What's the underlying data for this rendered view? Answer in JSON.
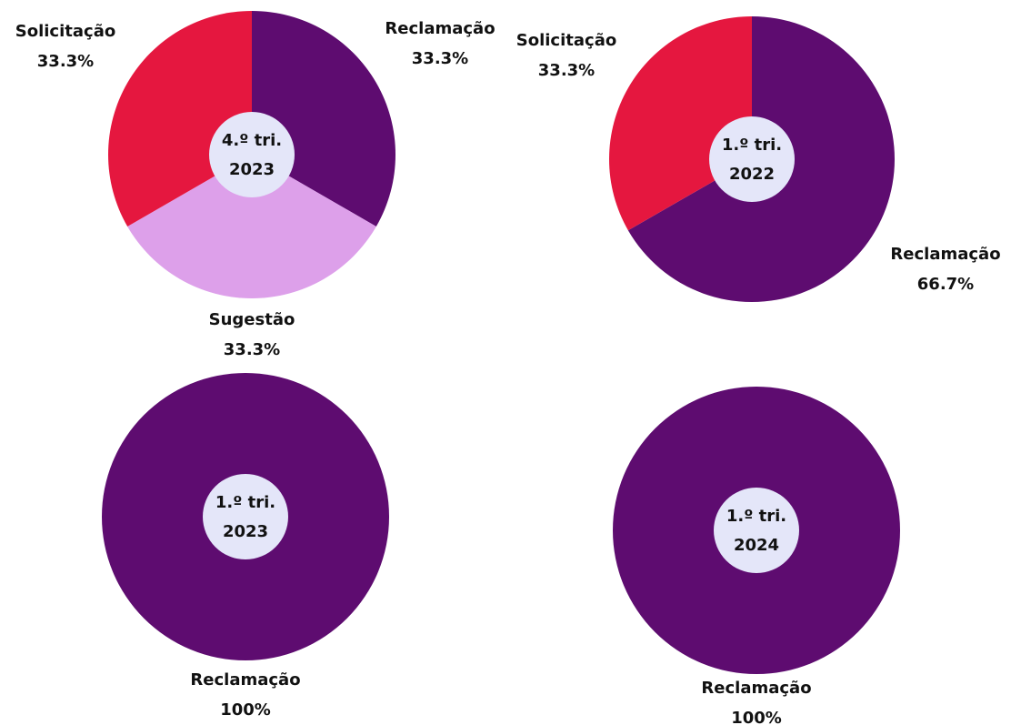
{
  "chart_data": [
    {
      "type": "pie",
      "title_lines": [
        "4.º tri.",
        "2023"
      ],
      "categories": [
        "Reclamação",
        "Sugestão",
        "Solicitação"
      ],
      "values": [
        33.3,
        33.3,
        33.3
      ],
      "value_labels": [
        "33.3%",
        "33.3%",
        "33.3%"
      ],
      "colors": [
        "#5e0c70",
        "#dda0ea",
        "#e5173f"
      ]
    },
    {
      "type": "pie",
      "title_lines": [
        "1.º tri.",
        "2022"
      ],
      "categories": [
        "Reclamação",
        "Solicitação"
      ],
      "values": [
        66.7,
        33.3
      ],
      "value_labels": [
        "66.7%",
        "33.3%"
      ],
      "colors": [
        "#5e0c70",
        "#e5173f"
      ]
    },
    {
      "type": "pie",
      "title_lines": [
        "1.º tri.",
        "2023"
      ],
      "categories": [
        "Reclamação"
      ],
      "values": [
        100
      ],
      "value_labels": [
        "100%"
      ],
      "colors": [
        "#5e0c70"
      ]
    },
    {
      "type": "pie",
      "title_lines": [
        "1.º tri.",
        "2024"
      ],
      "categories": [
        "Reclamação"
      ],
      "values": [
        100
      ],
      "value_labels": [
        "100%"
      ],
      "colors": [
        "#5e0c70"
      ]
    }
  ]
}
